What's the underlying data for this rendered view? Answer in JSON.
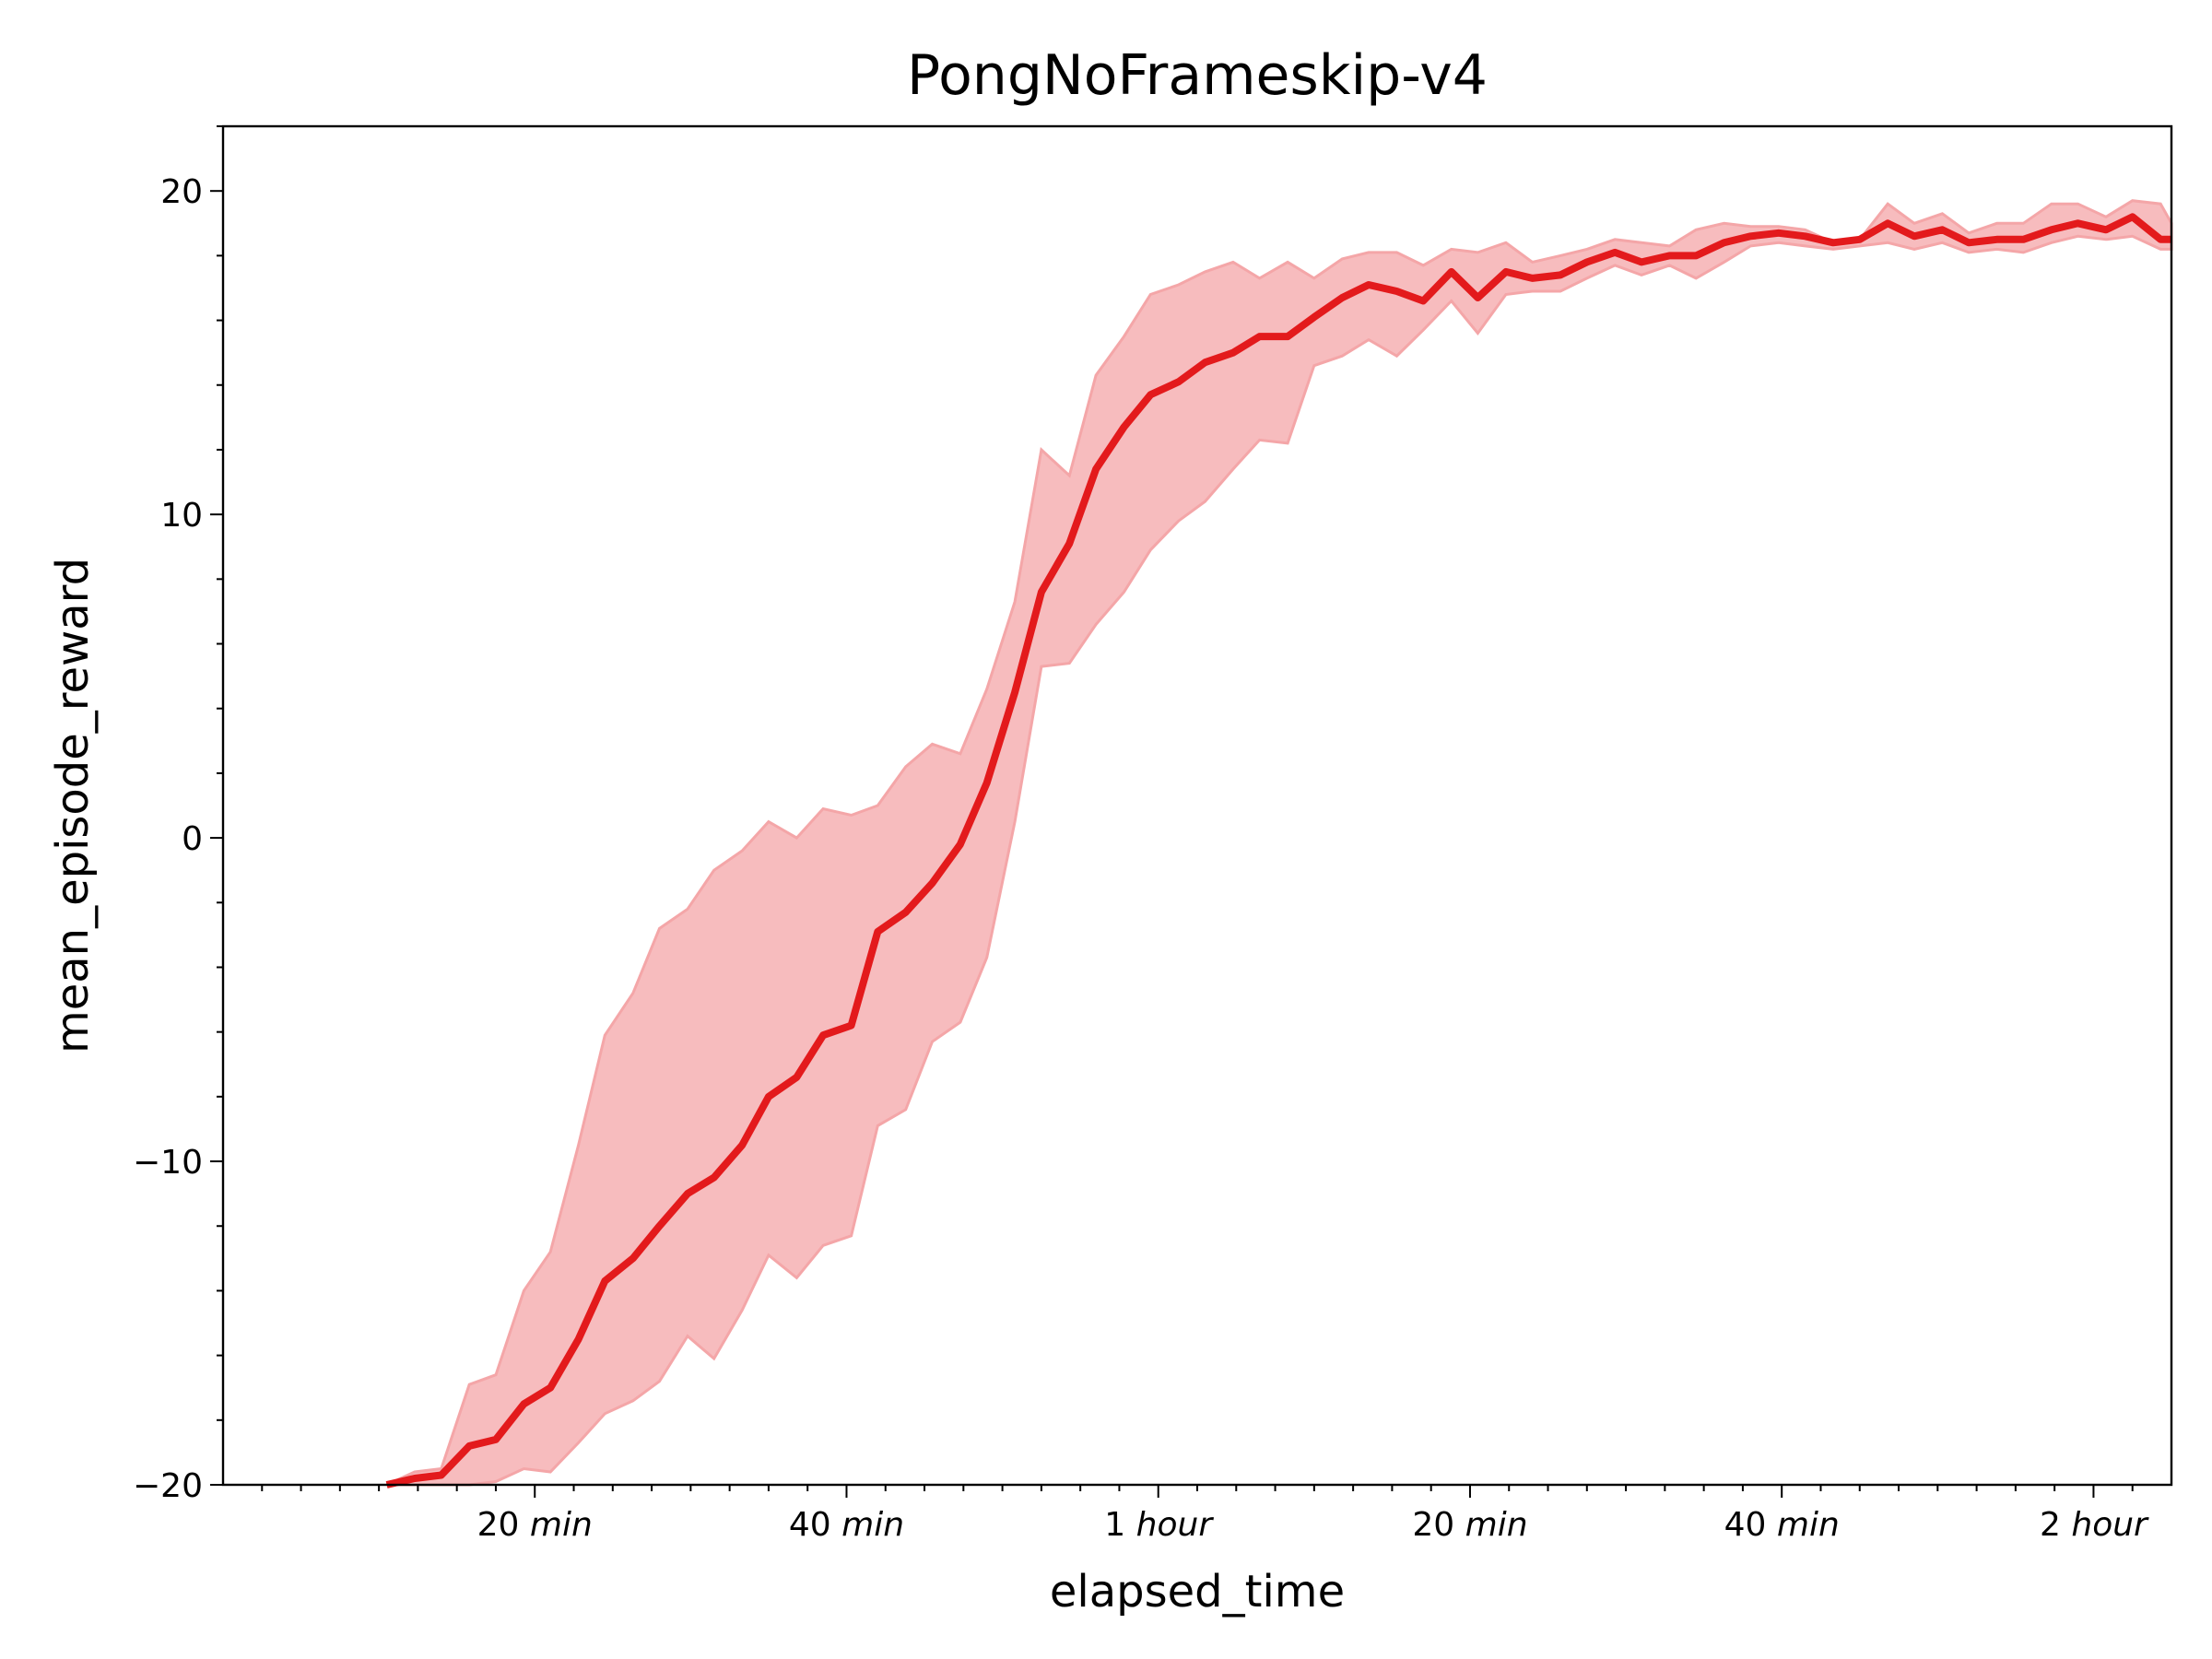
{
  "chart_data": {
    "type": "line",
    "title": "PongNoFrameskip-v4",
    "xlabel": "elapsed_time",
    "ylabel": "mean_episode_reward",
    "x_unit": "minutes",
    "xlim": [
      0,
      125
    ],
    "ylim": [
      -20,
      22
    ],
    "grid": false,
    "legend": "none",
    "x_ticks": [
      {
        "value": 20,
        "num": "20",
        "unit": "min"
      },
      {
        "value": 40,
        "num": "40",
        "unit": "min"
      },
      {
        "value": 60,
        "num": "1",
        "unit": "hour"
      },
      {
        "value": 80,
        "num": "20",
        "unit": "min"
      },
      {
        "value": 100,
        "num": "40",
        "unit": "min"
      },
      {
        "value": 120,
        "num": "2",
        "unit": "hour"
      }
    ],
    "y_ticks": [
      {
        "value": -20,
        "label": "−20"
      },
      {
        "value": -10,
        "label": "−10"
      },
      {
        "value": 0,
        "label": "0"
      },
      {
        "value": 10,
        "label": "10"
      },
      {
        "value": 20,
        "label": "20"
      }
    ],
    "series": [
      {
        "color": "#e31a1c",
        "band_color": "#f4a6a8",
        "x": [
          10.5,
          12.3,
          14.0,
          15.8,
          17.5,
          19.3,
          21.0,
          22.8,
          24.5,
          26.3,
          28.0,
          29.8,
          31.5,
          33.3,
          35.0,
          36.8,
          38.5,
          40.3,
          42.0,
          43.8,
          45.5,
          47.3,
          49.0,
          50.8,
          52.5,
          54.3,
          56.0,
          57.8,
          59.5,
          61.3,
          63.0,
          64.8,
          66.5,
          68.3,
          70.0,
          71.8,
          73.5,
          75.3,
          77.0,
          78.8,
          80.5,
          82.3,
          84.0,
          85.8,
          87.5,
          89.3,
          91.0,
          92.8,
          94.5,
          96.3,
          98.0,
          99.8,
          101.5,
          103.3,
          105.0,
          106.8,
          108.5,
          110.3,
          112.0,
          113.8,
          115.5,
          117.3,
          119.0,
          120.8,
          122.5,
          124.3,
          125.0
        ],
        "y": [
          -20.0,
          -19.8,
          -19.7,
          -18.8,
          -18.6,
          -17.5,
          -17.0,
          -15.5,
          -13.7,
          -13.0,
          -12.0,
          -11.0,
          -10.5,
          -9.5,
          -8.0,
          -7.4,
          -6.1,
          -5.8,
          -2.9,
          -2.3,
          -1.4,
          -0.2,
          1.7,
          4.5,
          7.6,
          9.1,
          11.4,
          12.7,
          13.7,
          14.1,
          14.7,
          15.0,
          15.5,
          15.5,
          16.1,
          16.7,
          17.1,
          16.9,
          16.6,
          17.5,
          16.7,
          17.5,
          17.3,
          17.4,
          17.8,
          18.1,
          17.8,
          18.0,
          18.0,
          18.4,
          18.6,
          18.7,
          18.6,
          18.4,
          18.5,
          19.0,
          18.6,
          18.8,
          18.4,
          18.5,
          18.5,
          18.8,
          19.0,
          18.8,
          19.2,
          18.5,
          18.5
        ],
        "upper": [
          -20.0,
          -19.6,
          -19.5,
          -16.9,
          -16.6,
          -14.0,
          -12.8,
          -9.5,
          -6.1,
          -4.8,
          -2.8,
          -2.2,
          -1.0,
          -0.4,
          0.5,
          0.0,
          0.9,
          0.7,
          1.0,
          2.2,
          2.9,
          2.6,
          4.6,
          7.3,
          12.0,
          11.2,
          14.3,
          15.5,
          16.8,
          17.1,
          17.5,
          17.8,
          17.3,
          17.8,
          17.3,
          17.9,
          18.1,
          18.1,
          17.7,
          18.2,
          18.1,
          18.4,
          17.8,
          18.0,
          18.2,
          18.5,
          18.4,
          18.3,
          18.8,
          19.0,
          18.9,
          18.9,
          18.8,
          18.4,
          18.5,
          19.6,
          19.0,
          19.3,
          18.7,
          19.0,
          19.0,
          19.6,
          19.6,
          19.2,
          19.7,
          19.6,
          19.0
        ],
        "lower": [
          -20.0,
          -20.0,
          -20.0,
          -20.0,
          -19.9,
          -19.5,
          -19.6,
          -18.7,
          -17.8,
          -17.4,
          -16.8,
          -15.4,
          -16.1,
          -14.6,
          -12.9,
          -13.6,
          -12.6,
          -12.3,
          -8.9,
          -8.4,
          -6.3,
          -5.7,
          -3.7,
          0.5,
          5.3,
          5.4,
          6.6,
          7.6,
          8.9,
          9.8,
          10.4,
          11.4,
          12.3,
          12.2,
          14.6,
          14.9,
          15.4,
          14.9,
          15.7,
          16.6,
          15.6,
          16.8,
          16.9,
          16.9,
          17.3,
          17.7,
          17.4,
          17.7,
          17.3,
          17.8,
          18.3,
          18.4,
          18.3,
          18.2,
          18.3,
          18.4,
          18.2,
          18.4,
          18.1,
          18.2,
          18.1,
          18.4,
          18.6,
          18.5,
          18.6,
          18.2,
          18.2
        ]
      }
    ]
  }
}
